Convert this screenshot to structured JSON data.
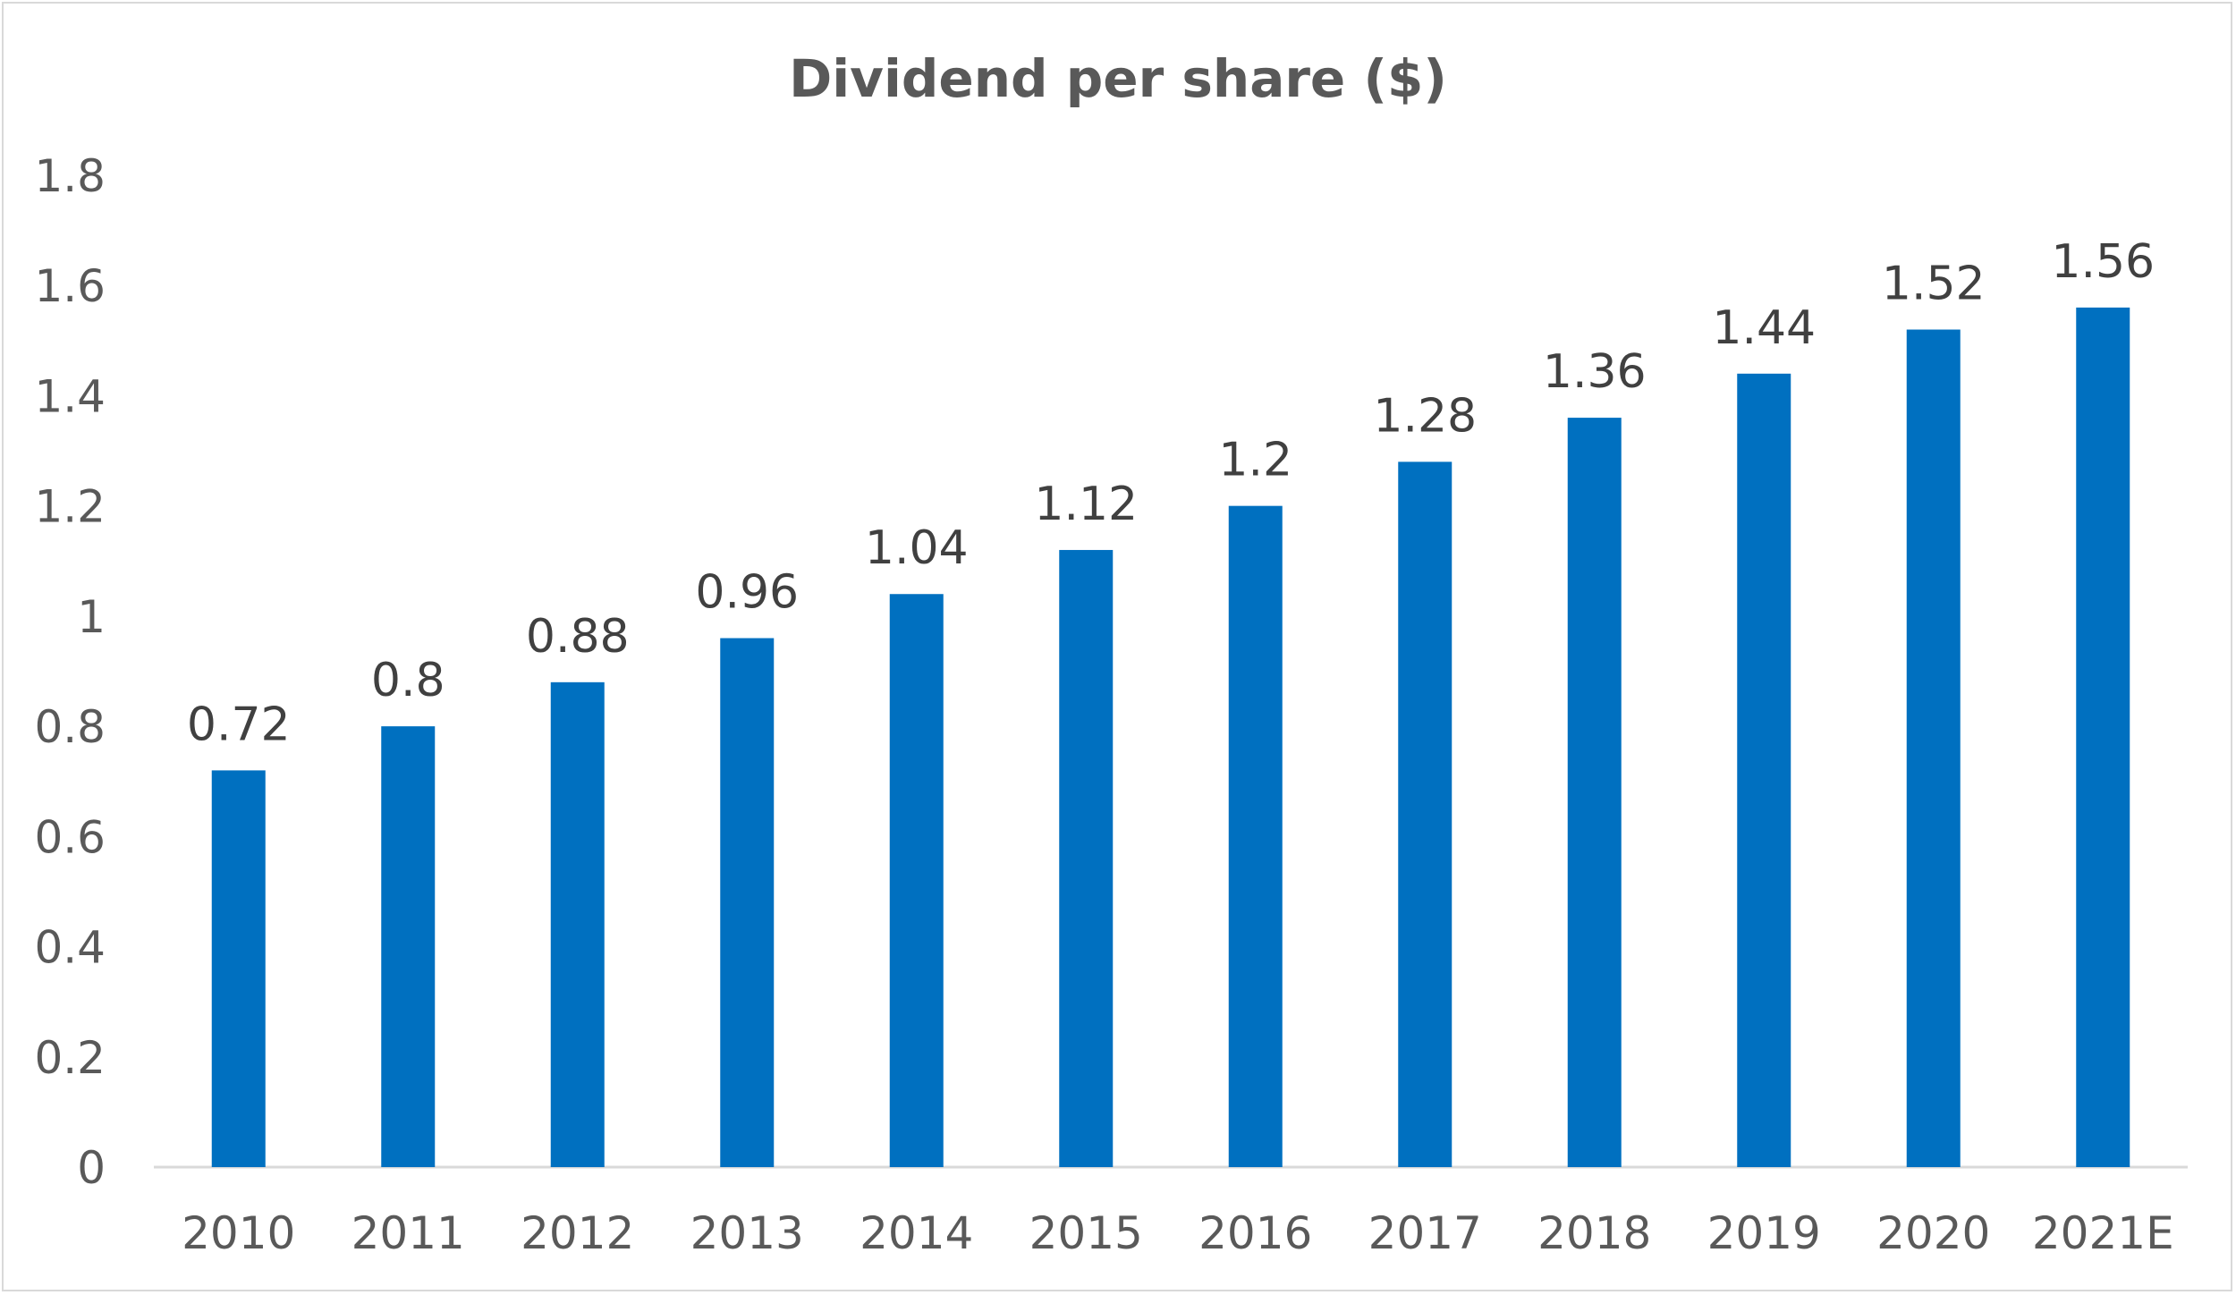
{
  "chart_data": {
    "type": "bar",
    "title": "Dividend per share ($)",
    "categories": [
      "2010",
      "2011",
      "2012",
      "2013",
      "2014",
      "2015",
      "2016",
      "2017",
      "2018",
      "2019",
      "2020",
      "2021E"
    ],
    "series": [
      {
        "name": "Dividend per share ($)",
        "values": [
          0.72,
          0.8,
          0.88,
          0.96,
          1.04,
          1.12,
          1.2,
          1.28,
          1.36,
          1.44,
          1.52,
          1.56
        ],
        "labels": [
          "0.72",
          "0.8",
          "0.88",
          "0.96",
          "1.04",
          "1.12",
          "1.2",
          "1.28",
          "1.36",
          "1.44",
          "1.52",
          "1.56"
        ]
      }
    ],
    "yticks": [
      "0",
      "0.2",
      "0.4",
      "0.6",
      "0.8",
      "1",
      "1.2",
      "1.4",
      "1.6",
      "1.8"
    ],
    "ylim": [
      0,
      1.8
    ],
    "xlabel": "",
    "ylabel": "",
    "grid": false,
    "legend": "none",
    "bar_color": "#0070c0"
  }
}
